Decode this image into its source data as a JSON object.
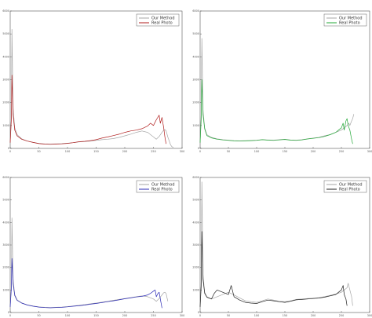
{
  "chart_data": [
    {
      "type": "line",
      "xlim": [
        0,
        300
      ],
      "ylim": [
        0,
        6000
      ],
      "x_ticks": [
        "0",
        "50",
        "100",
        "150",
        "200",
        "250",
        "300"
      ],
      "y_ticks": [
        "0",
        "1000",
        "2000",
        "3000",
        "4000",
        "5000",
        "6000"
      ],
      "grid": false,
      "legend_position": "top-right",
      "series": [
        {
          "name": "Our Method",
          "color": "#a6a6a6",
          "x": [
            0,
            2,
            3,
            5,
            8,
            12,
            20,
            30,
            40,
            50,
            60,
            70,
            80,
            90,
            100,
            110,
            120,
            130,
            140,
            150,
            160,
            170,
            180,
            190,
            200,
            210,
            220,
            230,
            240,
            250,
            255,
            260,
            265,
            268,
            270,
            272,
            275,
            278,
            280,
            282,
            285
          ],
          "y": [
            300,
            1400,
            5200,
            1800,
            900,
            600,
            420,
            320,
            260,
            220,
            200,
            190,
            200,
            210,
            230,
            250,
            280,
            300,
            320,
            350,
            380,
            400,
            430,
            480,
            550,
            620,
            700,
            760,
            700,
            500,
            400,
            520,
            700,
            800,
            820,
            780,
            500,
            300,
            150,
            80,
            40
          ]
        },
        {
          "name": "Real Photo",
          "color": "#b01c1c",
          "x": [
            0,
            2,
            3,
            5,
            8,
            12,
            20,
            30,
            40,
            50,
            60,
            70,
            80,
            90,
            100,
            110,
            120,
            130,
            140,
            150,
            160,
            170,
            180,
            190,
            200,
            210,
            220,
            230,
            240,
            245,
            250,
            255,
            260,
            262,
            265,
            268,
            270,
            272
          ],
          "y": [
            250,
            1300,
            3200,
            1500,
            800,
            550,
            400,
            320,
            260,
            210,
            190,
            180,
            190,
            200,
            220,
            250,
            290,
            310,
            340,
            380,
            450,
            500,
            560,
            620,
            700,
            760,
            800,
            860,
            980,
            1100,
            1000,
            1250,
            1450,
            1100,
            1350,
            900,
            500,
            200
          ]
        }
      ]
    },
    {
      "type": "line",
      "xlim": [
        0,
        300
      ],
      "ylim": [
        0,
        6000
      ],
      "x_ticks": [
        "0",
        "50",
        "100",
        "150",
        "200",
        "250",
        "300"
      ],
      "y_ticks": [
        "0",
        "1000",
        "2000",
        "3000",
        "4000",
        "5000",
        "6000"
      ],
      "grid": false,
      "legend_position": "top-right",
      "series": [
        {
          "name": "Our Method",
          "color": "#a6a6a6",
          "x": [
            0,
            2,
            3,
            5,
            8,
            12,
            20,
            30,
            40,
            50,
            60,
            70,
            80,
            90,
            100,
            110,
            120,
            130,
            140,
            150,
            160,
            170,
            180,
            190,
            200,
            210,
            220,
            230,
            240,
            250,
            255,
            260,
            263,
            265,
            268,
            270,
            272
          ],
          "y": [
            300,
            1500,
            4800,
            1700,
            900,
            600,
            480,
            420,
            380,
            360,
            340,
            330,
            340,
            350,
            360,
            380,
            370,
            360,
            380,
            400,
            370,
            360,
            380,
            420,
            450,
            480,
            550,
            600,
            700,
            800,
            900,
            1000,
            1100,
            1000,
            1200,
            1300,
            1500
          ]
        },
        {
          "name": "Real Photo",
          "color": "#22a836",
          "x": [
            0,
            2,
            3,
            5,
            8,
            12,
            20,
            30,
            40,
            50,
            60,
            70,
            80,
            90,
            100,
            110,
            120,
            130,
            140,
            150,
            160,
            170,
            180,
            190,
            200,
            210,
            220,
            230,
            240,
            245,
            250,
            253,
            255,
            258,
            260,
            262,
            265,
            268,
            270
          ],
          "y": [
            250,
            1300,
            3000,
            1500,
            850,
            560,
            460,
            400,
            370,
            350,
            330,
            320,
            330,
            340,
            350,
            380,
            360,
            350,
            370,
            390,
            360,
            350,
            370,
            410,
            440,
            470,
            520,
            600,
            700,
            800,
            900,
            1100,
            800,
            1200,
            1300,
            1000,
            800,
            400,
            200
          ]
        }
      ]
    },
    {
      "type": "line",
      "xlim": [
        0,
        300
      ],
      "ylim": [
        0,
        6000
      ],
      "x_ticks": [
        "0",
        "50",
        "100",
        "150",
        "200",
        "250",
        "300"
      ],
      "y_ticks": [
        "0",
        "1000",
        "2000",
        "3000",
        "4000",
        "5000",
        "6000"
      ],
      "grid": false,
      "legend_position": "top-right",
      "series": [
        {
          "name": "Our Method",
          "color": "#a6a6a6",
          "x": [
            0,
            2,
            3,
            5,
            8,
            12,
            20,
            30,
            40,
            50,
            60,
            70,
            80,
            90,
            100,
            110,
            120,
            130,
            140,
            150,
            160,
            170,
            180,
            190,
            200,
            210,
            220,
            230,
            240,
            250,
            255,
            260,
            265,
            268,
            270,
            272,
            275
          ],
          "y": [
            300,
            1200,
            4200,
            1500,
            800,
            560,
            430,
            340,
            290,
            250,
            230,
            220,
            230,
            240,
            260,
            290,
            320,
            350,
            390,
            420,
            460,
            500,
            540,
            580,
            620,
            660,
            700,
            740,
            700,
            600,
            500,
            620,
            780,
            880,
            900,
            850,
            500
          ]
        },
        {
          "name": "Real Photo",
          "color": "#2828b4",
          "x": [
            0,
            2,
            3,
            5,
            8,
            12,
            20,
            30,
            40,
            50,
            60,
            70,
            80,
            90,
            100,
            110,
            120,
            130,
            140,
            150,
            160,
            170,
            180,
            190,
            200,
            210,
            220,
            230,
            240,
            245,
            250,
            253,
            255,
            258,
            260,
            262,
            265
          ],
          "y": [
            250,
            1100,
            2400,
            1300,
            750,
            540,
            420,
            330,
            280,
            240,
            220,
            210,
            220,
            230,
            250,
            280,
            300,
            330,
            370,
            400,
            440,
            480,
            520,
            560,
            610,
            650,
            690,
            720,
            780,
            850,
            950,
            1000,
            700,
            850,
            900,
            600,
            200
          ]
        }
      ]
    },
    {
      "type": "line",
      "xlim": [
        0,
        300
      ],
      "ylim": [
        0,
        6000
      ],
      "x_ticks": [
        "0",
        "50",
        "100",
        "150",
        "200",
        "250",
        "300"
      ],
      "y_ticks": [
        "0",
        "1000",
        "2000",
        "3000",
        "4000",
        "5000",
        "6000"
      ],
      "grid": false,
      "legend_position": "top-right",
      "series": [
        {
          "name": "Our Method",
          "color": "#a6a6a6",
          "x": [
            0,
            2,
            3,
            5,
            8,
            12,
            20,
            30,
            40,
            50,
            60,
            70,
            80,
            90,
            100,
            110,
            120,
            130,
            140,
            150,
            160,
            170,
            180,
            190,
            200,
            210,
            220,
            230,
            240,
            250,
            255,
            260,
            262,
            265,
            268,
            270
          ],
          "y": [
            300,
            1400,
            5800,
            1700,
            900,
            700,
            600,
            700,
            800,
            900,
            780,
            650,
            520,
            480,
            450,
            520,
            600,
            550,
            500,
            480,
            520,
            580,
            600,
            620,
            640,
            660,
            700,
            760,
            820,
            900,
            1000,
            1100,
            1300,
            1000,
            700,
            300
          ]
        },
        {
          "name": "Real Photo",
          "color": "#222222",
          "x": [
            0,
            2,
            3,
            5,
            8,
            12,
            20,
            25,
            30,
            40,
            50,
            55,
            60,
            70,
            80,
            90,
            100,
            110,
            120,
            130,
            140,
            150,
            160,
            170,
            180,
            190,
            200,
            210,
            220,
            230,
            240,
            245,
            250,
            253,
            255,
            258,
            260
          ],
          "y": [
            250,
            1200,
            3600,
            1500,
            850,
            680,
            600,
            850,
            1000,
            900,
            800,
            1200,
            700,
            550,
            450,
            420,
            400,
            480,
            550,
            520,
            480,
            450,
            500,
            560,
            580,
            600,
            620,
            640,
            680,
            740,
            800,
            900,
            1000,
            1200,
            800,
            600,
            300
          ]
        }
      ]
    }
  ]
}
